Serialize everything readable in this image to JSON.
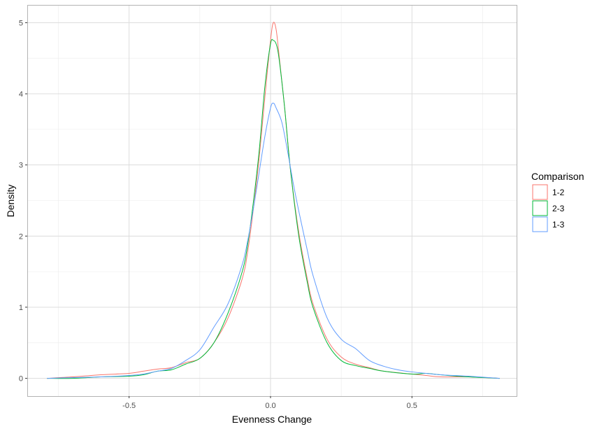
{
  "chart_data": {
    "type": "line",
    "subtype": "density",
    "xlabel": "Evenness Change",
    "ylabel": "Density",
    "xlim": [
      -0.86,
      0.87
    ],
    "ylim": [
      -0.25,
      5.25
    ],
    "x_ticks": [
      -0.5,
      0.0,
      0.5
    ],
    "x_tick_labels": [
      "-0.5",
      "0.0",
      "0.5"
    ],
    "y_ticks": [
      0,
      1,
      2,
      3,
      4,
      5
    ],
    "y_tick_labels": [
      "0",
      "1",
      "2",
      "3",
      "4",
      "5"
    ],
    "grid": true,
    "legend": {
      "title": "Comparison",
      "placement": "right"
    },
    "series": [
      {
        "name": "1-2",
        "color": "#F8766D",
        "points": [
          [
            -0.79,
            0.0
          ],
          [
            -0.7,
            0.02
          ],
          [
            -0.6,
            0.05
          ],
          [
            -0.5,
            0.07
          ],
          [
            -0.45,
            0.1
          ],
          [
            -0.4,
            0.13
          ],
          [
            -0.35,
            0.15
          ],
          [
            -0.3,
            0.22
          ],
          [
            -0.25,
            0.28
          ],
          [
            -0.2,
            0.5
          ],
          [
            -0.15,
            0.85
          ],
          [
            -0.1,
            1.4
          ],
          [
            -0.08,
            1.8
          ],
          [
            -0.06,
            2.4
          ],
          [
            -0.04,
            3.1
          ],
          [
            -0.02,
            3.95
          ],
          [
            0.0,
            4.75
          ],
          [
            0.01,
            5.0
          ],
          [
            0.02,
            4.9
          ],
          [
            0.03,
            4.55
          ],
          [
            0.05,
            3.8
          ],
          [
            0.07,
            2.95
          ],
          [
            0.1,
            2.05
          ],
          [
            0.13,
            1.4
          ],
          [
            0.15,
            1.05
          ],
          [
            0.2,
            0.55
          ],
          [
            0.25,
            0.3
          ],
          [
            0.3,
            0.2
          ],
          [
            0.35,
            0.15
          ],
          [
            0.4,
            0.1
          ],
          [
            0.5,
            0.06
          ],
          [
            0.55,
            0.04
          ],
          [
            0.6,
            0.02
          ],
          [
            0.7,
            0.02
          ],
          [
            0.81,
            0.0
          ]
        ]
      },
      {
        "name": "2-3",
        "color": "#00BA38",
        "points": [
          [
            -0.79,
            0.0
          ],
          [
            -0.7,
            0.0
          ],
          [
            -0.6,
            0.02
          ],
          [
            -0.5,
            0.03
          ],
          [
            -0.45,
            0.05
          ],
          [
            -0.4,
            0.1
          ],
          [
            -0.35,
            0.12
          ],
          [
            -0.3,
            0.2
          ],
          [
            -0.25,
            0.28
          ],
          [
            -0.2,
            0.5
          ],
          [
            -0.15,
            0.92
          ],
          [
            -0.1,
            1.5
          ],
          [
            -0.08,
            1.9
          ],
          [
            -0.06,
            2.5
          ],
          [
            -0.04,
            3.2
          ],
          [
            -0.02,
            4.1
          ],
          [
            0.0,
            4.7
          ],
          [
            0.01,
            4.75
          ],
          [
            0.02,
            4.7
          ],
          [
            0.03,
            4.5
          ],
          [
            0.05,
            3.8
          ],
          [
            0.07,
            2.95
          ],
          [
            0.1,
            2.0
          ],
          [
            0.13,
            1.35
          ],
          [
            0.15,
            1.0
          ],
          [
            0.2,
            0.5
          ],
          [
            0.25,
            0.25
          ],
          [
            0.3,
            0.18
          ],
          [
            0.35,
            0.14
          ],
          [
            0.4,
            0.1
          ],
          [
            0.5,
            0.06
          ],
          [
            0.55,
            0.07
          ],
          [
            0.6,
            0.05
          ],
          [
            0.7,
            0.02
          ],
          [
            0.81,
            0.0
          ]
        ]
      },
      {
        "name": "1-3",
        "color": "#619CFF",
        "points": [
          [
            -0.79,
            0.0
          ],
          [
            -0.7,
            0.01
          ],
          [
            -0.6,
            0.02
          ],
          [
            -0.5,
            0.04
          ],
          [
            -0.45,
            0.06
          ],
          [
            -0.4,
            0.1
          ],
          [
            -0.35,
            0.14
          ],
          [
            -0.3,
            0.25
          ],
          [
            -0.25,
            0.4
          ],
          [
            -0.2,
            0.72
          ],
          [
            -0.15,
            1.05
          ],
          [
            -0.1,
            1.6
          ],
          [
            -0.08,
            1.95
          ],
          [
            -0.06,
            2.4
          ],
          [
            -0.04,
            2.9
          ],
          [
            -0.02,
            3.4
          ],
          [
            0.0,
            3.8
          ],
          [
            0.01,
            3.87
          ],
          [
            0.02,
            3.8
          ],
          [
            0.04,
            3.6
          ],
          [
            0.06,
            3.2
          ],
          [
            0.08,
            2.75
          ],
          [
            0.1,
            2.35
          ],
          [
            0.13,
            1.8
          ],
          [
            0.15,
            1.45
          ],
          [
            0.2,
            0.85
          ],
          [
            0.25,
            0.55
          ],
          [
            0.3,
            0.42
          ],
          [
            0.35,
            0.25
          ],
          [
            0.4,
            0.17
          ],
          [
            0.45,
            0.12
          ],
          [
            0.5,
            0.09
          ],
          [
            0.55,
            0.07
          ],
          [
            0.6,
            0.05
          ],
          [
            0.7,
            0.03
          ],
          [
            0.81,
            0.0
          ]
        ]
      }
    ]
  }
}
